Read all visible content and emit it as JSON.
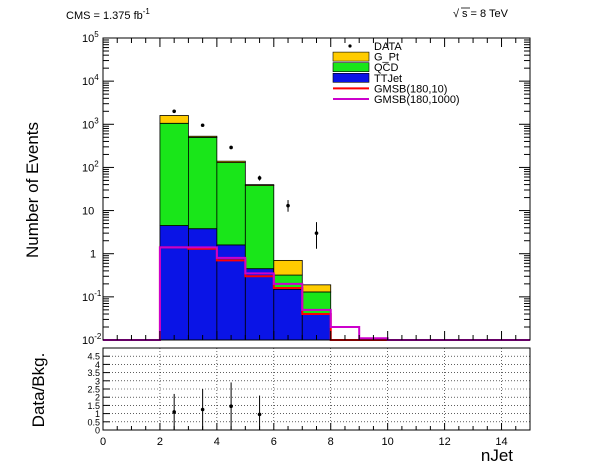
{
  "header": {
    "lumi_prefix": "CMS = 1.375 fb",
    "lumi_sup": "-1",
    "energy": "s = 8 TeV",
    "energy_sqrt": "√"
  },
  "chart_data": [
    {
      "type": "bar",
      "subtype": "stacked-histogram-with-overlays",
      "xlabel": "nJet",
      "ylabel": "Number of Events",
      "xlim": [
        0,
        15
      ],
      "ylim": [
        0.01,
        100000
      ],
      "y_scale": "log",
      "grid": false,
      "legend_position": "top-right",
      "bin_edges": [
        0,
        1,
        2,
        3,
        4,
        5,
        6,
        7,
        8,
        9,
        10,
        11,
        12,
        13,
        14,
        15
      ],
      "x_ticks": [
        0,
        2,
        4,
        6,
        8,
        10,
        12,
        14
      ],
      "y_ticks": [
        {
          "value": 0.01,
          "base": "10",
          "exp": "-2"
        },
        {
          "value": 0.1,
          "base": "10",
          "exp": "-1"
        },
        {
          "value": 1,
          "base": "1",
          "exp": ""
        },
        {
          "value": 10,
          "base": "10",
          "exp": ""
        },
        {
          "value": 100,
          "base": "10",
          "exp": "2"
        },
        {
          "value": 1000,
          "base": "10",
          "exp": "3"
        },
        {
          "value": 10000,
          "base": "10",
          "exp": "4"
        },
        {
          "value": 100000,
          "base": "10",
          "exp": "5"
        }
      ],
      "stack": [
        {
          "name": "TTJet",
          "color": "#0a14e6",
          "values": [
            0,
            0,
            4.5,
            3.8,
            1.6,
            0.45,
            0.15,
            0.04,
            0,
            0,
            0,
            0,
            0,
            0,
            0
          ]
        },
        {
          "name": "QCD",
          "color": "#19e619",
          "values": [
            0,
            0,
            1050,
            495,
            128,
            37.5,
            0.17,
            0.09,
            0,
            0,
            0,
            0,
            0,
            0,
            0
          ]
        },
        {
          "name": "G_Pt",
          "color": "#ffcc00",
          "values": [
            0,
            0,
            545,
            30,
            10,
            2,
            0.38,
            0.06,
            0,
            0,
            0,
            0,
            0,
            0,
            0
          ]
        }
      ],
      "overlays": [
        {
          "name": "GMSB(180,10)",
          "color": "#ff0000",
          "values": [
            0,
            0,
            1.4,
            1.3,
            0.7,
            0.3,
            0.16,
            0.04,
            0,
            0,
            0,
            0,
            0,
            0,
            0
          ]
        },
        {
          "name": "GMSB(180,1000)",
          "color": "#cc00cc",
          "values": [
            0.01,
            0.01,
            1.4,
            1.4,
            0.8,
            0.35,
            0.2,
            0.05,
            0.02,
            0.011,
            0.01,
            0.01,
            0.01,
            0.01,
            0.01
          ]
        }
      ],
      "data_points": {
        "name": "DATA",
        "x": [
          2.5,
          3.5,
          4.5,
          5.5,
          6.5,
          7.5
        ],
        "y": [
          2000,
          950,
          290,
          57,
          13,
          3
        ],
        "err_low": [
          45,
          31,
          17,
          7.5,
          3.6,
          1.7
        ],
        "err_high": [
          45,
          31,
          17,
          7.5,
          4.5,
          2.4
        ]
      },
      "legend": [
        {
          "label": "DATA",
          "kind": "marker"
        },
        {
          "label": "G_Pt",
          "kind": "fill",
          "color": "#ffcc00"
        },
        {
          "label": "QCD",
          "kind": "fill",
          "color": "#19e619"
        },
        {
          "label": "TTJet",
          "kind": "fill",
          "color": "#0a14e6"
        },
        {
          "label": "GMSB(180,10)",
          "kind": "line",
          "color": "#ff0000"
        },
        {
          "label": "GMSB(180,1000)",
          "kind": "line",
          "color": "#cc00cc"
        }
      ]
    },
    {
      "type": "scatter",
      "xlabel": "nJet",
      "ylabel": "Data/Bkg.",
      "xlim": [
        0,
        15
      ],
      "ylim": [
        0,
        5
      ],
      "grid": true,
      "x_ticks": [
        0,
        2,
        4,
        6,
        8,
        10,
        12,
        14
      ],
      "y_ticks": [
        0,
        0.5,
        1,
        1.5,
        2,
        2.5,
        3,
        3.5,
        4,
        4.5
      ],
      "x": [
        2.5,
        3.5,
        4.5,
        5.5
      ],
      "y": [
        1.1,
        1.25,
        1.45,
        0.95
      ],
      "err_low": [
        1.1,
        1.25,
        1.45,
        0.95
      ],
      "err_high": [
        1.1,
        1.25,
        1.45,
        1.15
      ]
    }
  ]
}
